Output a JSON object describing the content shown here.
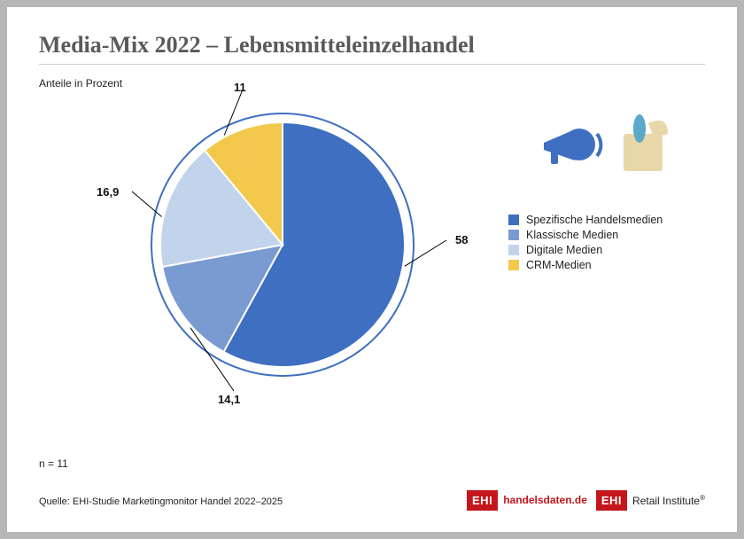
{
  "title": "Media-Mix 2022 – Lebensmitteleinzelhandel",
  "subtitle": "Anteile in Prozent",
  "n_note": "n = 11",
  "source": "Quelle: EHI-Studie Marketingmonitor Handel 2022–2025",
  "chart": {
    "type": "pie",
    "background": "#ffffff",
    "outer_ring_color": "#3e6fc1",
    "outer_ring_width": 2,
    "slice_stroke": "#ffffff",
    "slice_stroke_width": 2,
    "start_angle_deg": 0,
    "slices": [
      {
        "label": "Spezifische Handelsmedien",
        "value": 58,
        "display": "58",
        "color": "#3e6fc1"
      },
      {
        "label": "Klassische Medien",
        "value": 14.1,
        "display": "14,1",
        "color": "#7a9ad2"
      },
      {
        "label": "Digitale Medien",
        "value": 16.9,
        "display": "16,9",
        "color": "#c2d3ec"
      },
      {
        "label": "CRM-Medien",
        "value": 11,
        "display": "11",
        "color": "#f2c94c"
      }
    ],
    "label_font_size": 13,
    "label_font_weight": "bold",
    "legend_font_size": 12.5
  },
  "logos": {
    "badge_text": "EHI",
    "badge_bg": "#c4161c",
    "badge_fg": "#ffffff",
    "site": "handelsdaten.de",
    "institute": "Retail Institute"
  },
  "deco_icons": {
    "megaphone_color": "#3e6fc1",
    "bag_color": "#e8d7a8",
    "bottle_color": "#5aa9c9",
    "bread_color": "#e8d7a8"
  }
}
